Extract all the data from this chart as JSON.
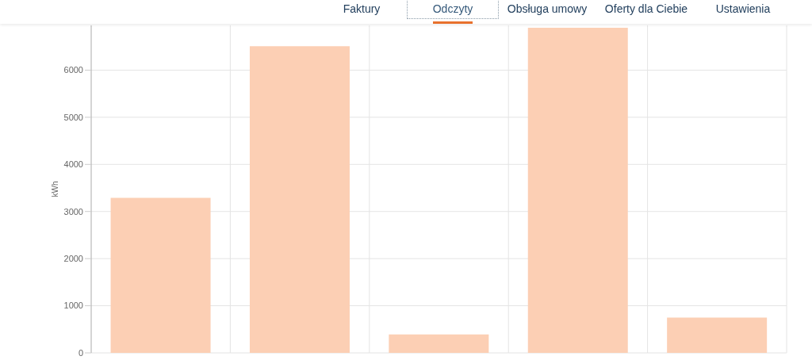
{
  "chart_data": {
    "type": "bar",
    "categories": [
      null,
      null,
      null,
      null,
      null
    ],
    "values": [
      3290,
      6510,
      390,
      6900,
      750
    ],
    "color": "#fccfb4",
    "ylabel": "kWh",
    "ylim": [
      0,
      6950
    ],
    "yticks": [
      0,
      1000,
      2000,
      3000,
      4000,
      5000,
      6000
    ],
    "grid": true,
    "tick_labels": "y",
    "annotations": [
      "Faktury",
      "Odczyty",
      "Obsługa umowy",
      "Oferty dla Ciebie",
      "Ustawienia"
    ]
  }
}
